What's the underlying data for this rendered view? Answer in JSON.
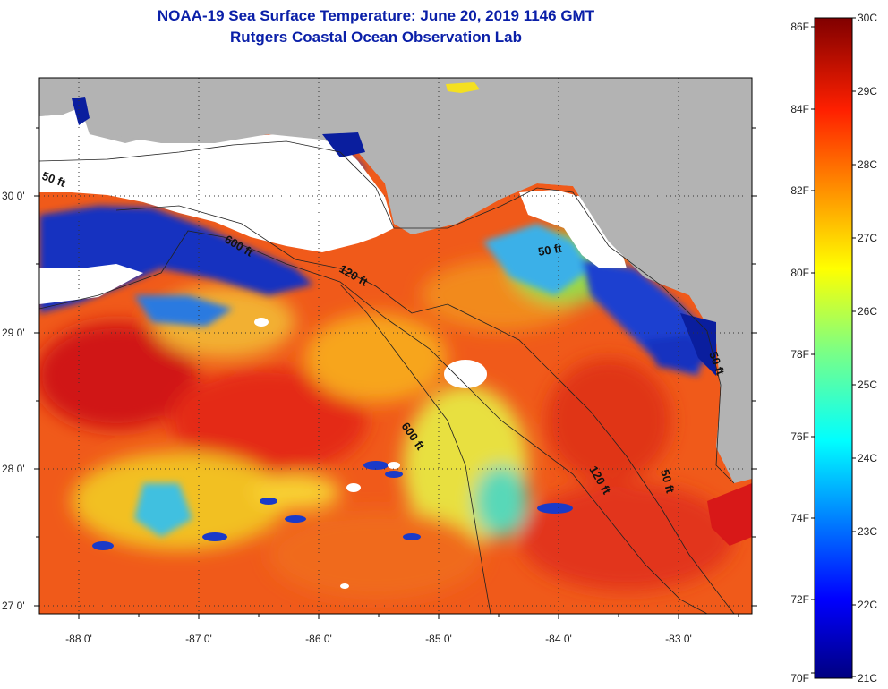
{
  "header": {
    "title": "NOAA-19 Sea Surface Temperature:  June 20, 2019 1146 GMT",
    "subtitle": "Rutgers Coastal Ocean Observation Lab"
  },
  "map": {
    "lon_ticks": [
      "-88 0'",
      "-87 0'",
      "-86 0'",
      "-85 0'",
      "-84 0'",
      "-83 0'"
    ],
    "lat_ticks": [
      "30 0'",
      "29 0'",
      "28 0'",
      "27 0'"
    ],
    "depth_labels": [
      "50 ft",
      "600 ft",
      "120 ft",
      "50 ft",
      "600 ft",
      "120 ft",
      "50 ft",
      "50 ft"
    ],
    "colors": {
      "land": "#b3b3b3",
      "cloud": "#ffffff",
      "warm": "#f0601a",
      "cool": "#0a1fb0"
    }
  },
  "colorbar": {
    "fahrenheit": [
      "86F",
      "84F",
      "82F",
      "80F",
      "78F",
      "76F",
      "74F",
      "72F",
      "70F"
    ],
    "celsius": [
      "30C",
      "29C",
      "28C",
      "27C",
      "26C",
      "25C",
      "24C",
      "23C",
      "22C",
      "21C"
    ]
  }
}
